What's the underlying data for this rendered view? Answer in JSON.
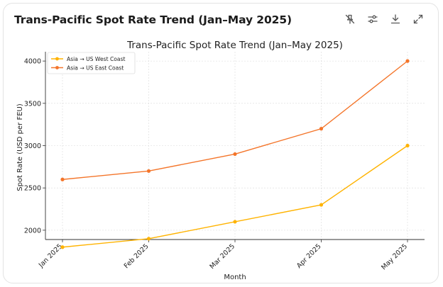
{
  "card": {
    "title": "Trans-Pacific Spot Rate Trend (Jan–May 2025)"
  },
  "toolbar": {
    "icons": [
      "pin-off-icon",
      "sliders-icon",
      "download-icon",
      "expand-icon"
    ]
  },
  "colors": {
    "west": "#FFB300",
    "east": "#F4752A",
    "axis": "#333333",
    "grid": "#d9d9d9"
  },
  "chart_data": {
    "type": "line",
    "title": "Trans-Pacific Spot Rate Trend (Jan–May 2025)",
    "xlabel": "Month",
    "ylabel": "Spot Rate (USD per FEU)",
    "categories": [
      "Jan 2025",
      "Feb 2025",
      "Mar 2025",
      "Apr 2025",
      "May 2025"
    ],
    "yticks": [
      "2000",
      "2500",
      "3000",
      "3500",
      "4000"
    ],
    "ylim": [
      1890,
      4110
    ],
    "grid": true,
    "legend_position": "top-left",
    "series": [
      {
        "name": "Asia → US West Coast",
        "values": [
          1800,
          1900,
          2100,
          2300,
          3000
        ]
      },
      {
        "name": "Asia → US East Coast",
        "values": [
          2600,
          2700,
          2900,
          3200,
          4000
        ]
      }
    ]
  }
}
